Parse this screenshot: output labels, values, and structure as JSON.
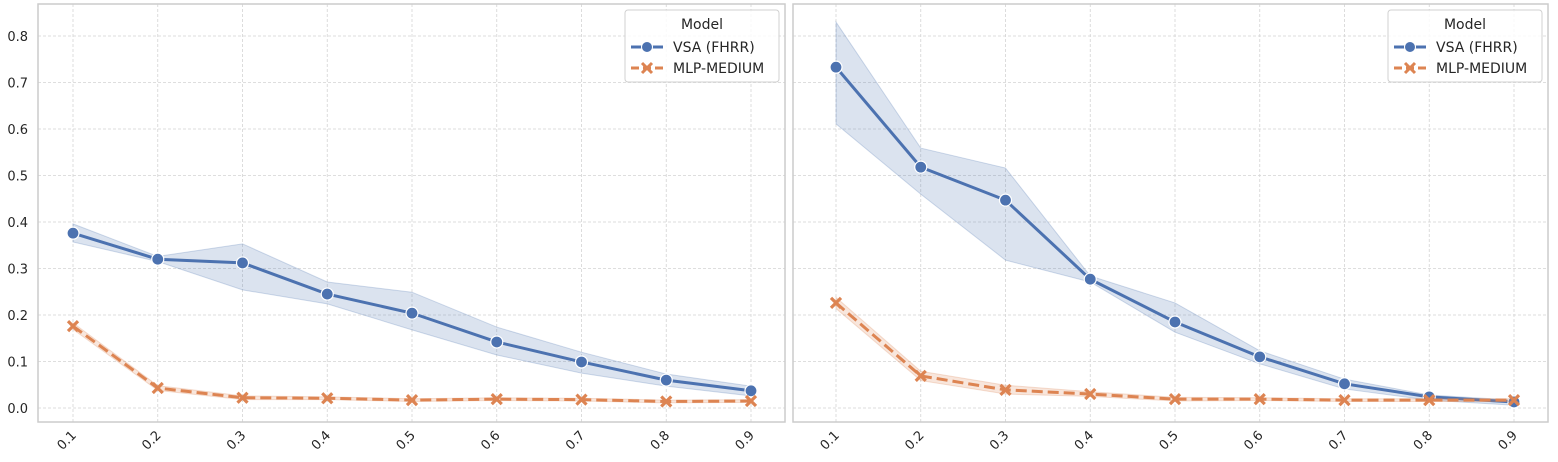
{
  "chart_data": [
    {
      "type": "line",
      "x": [
        0.1,
        0.2,
        0.3,
        0.4,
        0.5,
        0.6,
        0.7,
        0.8,
        0.9
      ],
      "x_tick_labels": [
        "0.1",
        "0.2",
        "0.3",
        "0.4",
        "0.5",
        "0.6",
        "0.7",
        "0.8",
        "0.9"
      ],
      "y_tick_labels": [
        "0.0",
        "0.1",
        "0.2",
        "0.3",
        "0.4",
        "0.5",
        "0.6",
        "0.7",
        "0.8"
      ],
      "ylim": [
        -0.03,
        0.86
      ],
      "grid": true,
      "legend": {
        "title": "Model",
        "placement": "top-right"
      },
      "series": [
        {
          "name": "VSA (FHRR)",
          "color": "#4c72b0",
          "marker": "circle",
          "linestyle": "solid",
          "values": [
            0.376,
            0.32,
            0.312,
            0.245,
            0.204,
            0.142,
            0.099,
            0.06,
            0.037
          ],
          "ci_upper": [
            0.396,
            0.326,
            0.353,
            0.271,
            0.249,
            0.174,
            0.12,
            0.073,
            0.047
          ],
          "ci_lower": [
            0.357,
            0.315,
            0.254,
            0.224,
            0.168,
            0.114,
            0.075,
            0.047,
            0.026
          ]
        },
        {
          "name": "MLP-MEDIUM",
          "color": "#dd8452",
          "marker": "x",
          "linestyle": "dashed",
          "values": [
            0.176,
            0.043,
            0.022,
            0.021,
            0.017,
            0.019,
            0.018,
            0.014,
            0.015
          ],
          "ci_upper": [
            0.183,
            0.048,
            0.026,
            0.024,
            0.02,
            0.022,
            0.021,
            0.017,
            0.018
          ],
          "ci_lower": [
            0.169,
            0.038,
            0.018,
            0.018,
            0.014,
            0.016,
            0.015,
            0.011,
            0.012
          ]
        }
      ]
    },
    {
      "type": "line",
      "x": [
        0.1,
        0.2,
        0.3,
        0.4,
        0.5,
        0.6,
        0.7,
        0.8,
        0.9
      ],
      "x_tick_labels": [
        "0.1",
        "0.2",
        "0.3",
        "0.4",
        "0.5",
        "0.6",
        "0.7",
        "0.8",
        "0.9"
      ],
      "ylim": [
        -0.03,
        0.86
      ],
      "grid": true,
      "legend": {
        "title": "Model",
        "placement": "top-right"
      },
      "series": [
        {
          "name": "VSA (FHRR)",
          "color": "#4c72b0",
          "marker": "circle",
          "linestyle": "solid",
          "values": [
            0.733,
            0.518,
            0.447,
            0.277,
            0.185,
            0.11,
            0.052,
            0.024,
            0.013
          ],
          "ci_upper": [
            0.83,
            0.559,
            0.516,
            0.284,
            0.226,
            0.123,
            0.062,
            0.028,
            0.017
          ],
          "ci_lower": [
            0.611,
            0.46,
            0.318,
            0.271,
            0.163,
            0.095,
            0.041,
            0.017,
            0.006
          ]
        },
        {
          "name": "MLP-MEDIUM",
          "color": "#dd8452",
          "marker": "x",
          "linestyle": "dashed",
          "values": [
            0.226,
            0.069,
            0.039,
            0.03,
            0.019,
            0.019,
            0.017,
            0.017,
            0.017
          ],
          "ci_upper": [
            0.238,
            0.079,
            0.049,
            0.035,
            0.023,
            0.022,
            0.02,
            0.02,
            0.02
          ],
          "ci_lower": [
            0.214,
            0.059,
            0.03,
            0.025,
            0.015,
            0.016,
            0.014,
            0.014,
            0.014
          ]
        }
      ]
    }
  ]
}
